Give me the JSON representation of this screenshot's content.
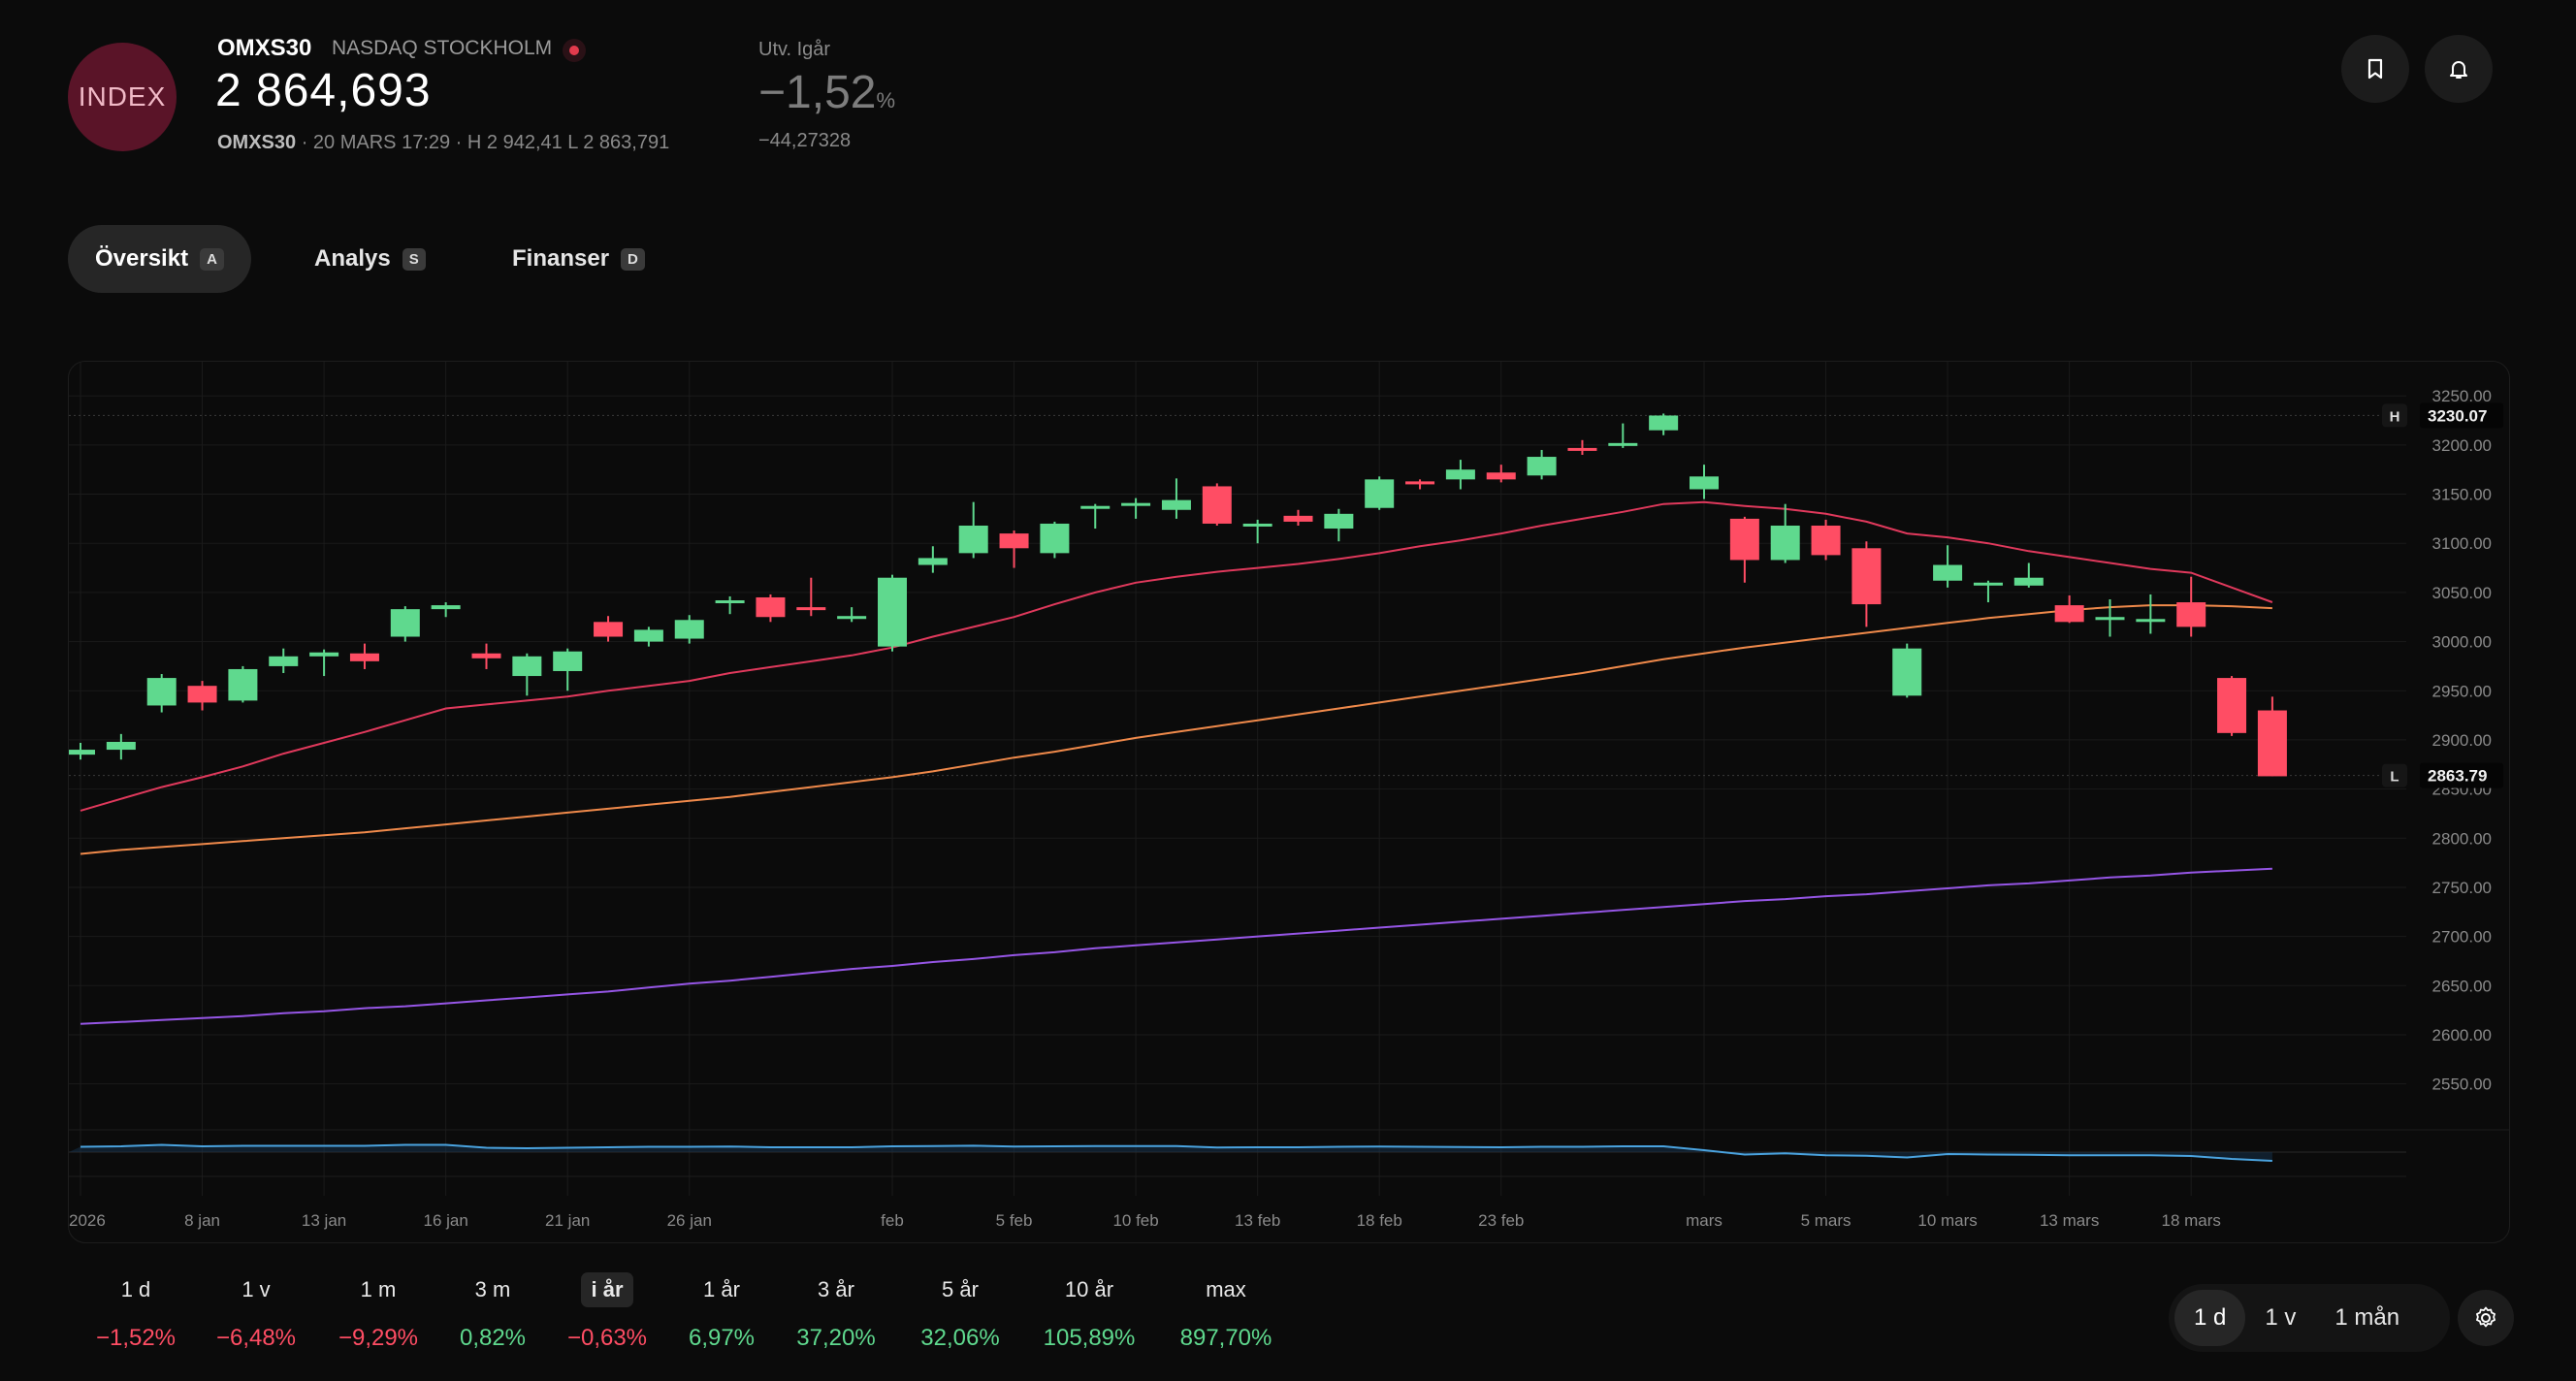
{
  "header": {
    "logo_text": "INDEX",
    "ticker": "OMXS30",
    "exchange": "NASDAQ STOCKHOLM",
    "price": "2 864,693",
    "sub_ticker": "OMXS30",
    "sub_rest": "· 20 MARS 17:29 · H 2 942,41 L 2 863,791",
    "change_label": "Utv. Igår",
    "change_pct": "−1,52",
    "change_pct_unit": "%",
    "change_abs": "−44,27328"
  },
  "icons": {
    "bookmark": "bookmark-icon",
    "bell": "bell-icon",
    "settings": "gear-icon",
    "live": "live-dot-icon"
  },
  "tabs": [
    {
      "label": "Översikt",
      "key": "A",
      "active": true
    },
    {
      "label": "Analys",
      "key": "S",
      "active": false
    },
    {
      "label": "Finanser",
      "key": "D",
      "active": false
    }
  ],
  "chart_data": {
    "type": "candlestick",
    "y_ticks": [
      "3250.00",
      "3200.00",
      "3150.00",
      "3100.00",
      "3050.00",
      "3000.00",
      "2950.00",
      "2900.00",
      "2850.00",
      "2800.00",
      "2750.00",
      "2700.00",
      "2650.00",
      "2600.00",
      "2550.00"
    ],
    "ylim": [
      2525,
      3265
    ],
    "high_marker": {
      "tag": "H",
      "value": "3230.07"
    },
    "low_marker": {
      "tag": "L",
      "value": "2863.79"
    },
    "x_labels": [
      {
        "label": "2026",
        "i": 0
      },
      {
        "label": "8 jan",
        "i": 3
      },
      {
        "label": "13 jan",
        "i": 6
      },
      {
        "label": "16 jan",
        "i": 9
      },
      {
        "label": "21 jan",
        "i": 12
      },
      {
        "label": "26 jan",
        "i": 15
      },
      {
        "label": "feb",
        "i": 20
      },
      {
        "label": "5 feb",
        "i": 23
      },
      {
        "label": "10 feb",
        "i": 26
      },
      {
        "label": "13 feb",
        "i": 29
      },
      {
        "label": "18 feb",
        "i": 32
      },
      {
        "label": "23 feb",
        "i": 35
      },
      {
        "label": "mars",
        "i": 40
      },
      {
        "label": "5 mars",
        "i": 43
      },
      {
        "label": "10 mars",
        "i": 46
      },
      {
        "label": "13 mars",
        "i": 49
      },
      {
        "label": "18 mars",
        "i": 52
      }
    ],
    "candles": [
      [
        2885,
        2890,
        2880,
        2897
      ],
      [
        2890,
        2898,
        2880,
        2906
      ],
      [
        2935,
        2963,
        2928,
        2967
      ],
      [
        2955,
        2938,
        2930,
        2960
      ],
      [
        2940,
        2972,
        2938,
        2975
      ],
      [
        2975,
        2985,
        2968,
        2993
      ],
      [
        2985,
        2989,
        2965,
        2992
      ],
      [
        2988,
        2980,
        2972,
        2998
      ],
      [
        3005,
        3033,
        3000,
        3036
      ],
      [
        3033,
        3037,
        3025,
        3040
      ],
      [
        2988,
        2983,
        2972,
        2998
      ],
      [
        2965,
        2985,
        2945,
        2988
      ],
      [
        2970,
        2990,
        2950,
        2993
      ],
      [
        3020,
        3005,
        3000,
        3026
      ],
      [
        3000,
        3012,
        2995,
        3015
      ],
      [
        3003,
        3022,
        2998,
        3027
      ],
      [
        3040,
        3042,
        3028,
        3046
      ],
      [
        3045,
        3025,
        3020,
        3048
      ],
      [
        3035,
        3032,
        3026,
        3065
      ],
      [
        3025,
        3026,
        3020,
        3035
      ],
      [
        2995,
        3065,
        2990,
        3068
      ],
      [
        3078,
        3085,
        3070,
        3097
      ],
      [
        3090,
        3118,
        3085,
        3142
      ],
      [
        3110,
        3095,
        3075,
        3113
      ],
      [
        3090,
        3120,
        3085,
        3122
      ],
      [
        3136,
        3138,
        3115,
        3140
      ],
      [
        3140,
        3141,
        3125,
        3146
      ],
      [
        3134,
        3144,
        3125,
        3166
      ],
      [
        3158,
        3120,
        3118,
        3161
      ],
      [
        3119,
        3120,
        3100,
        3124
      ],
      [
        3128,
        3122,
        3118,
        3134
      ],
      [
        3115,
        3130,
        3102,
        3135
      ],
      [
        3136,
        3165,
        3134,
        3168
      ],
      [
        3163,
        3160,
        3155,
        3165
      ],
      [
        3165,
        3175,
        3155,
        3185
      ],
      [
        3172,
        3165,
        3162,
        3180
      ],
      [
        3169,
        3188,
        3165,
        3195
      ],
      [
        3197,
        3195,
        3190,
        3205
      ],
      [
        3202,
        3202,
        3197,
        3222
      ],
      [
        3215,
        3230,
        3210,
        3232
      ],
      [
        3155,
        3168,
        3145,
        3180
      ],
      [
        3125,
        3083,
        3060,
        3127
      ],
      [
        3083,
        3118,
        3080,
        3140
      ],
      [
        3118,
        3088,
        3083,
        3124
      ],
      [
        3095,
        3038,
        3015,
        3102
      ],
      [
        2945,
        2993,
        2943,
        2998
      ],
      [
        3062,
        3078,
        3055,
        3098
      ],
      [
        3060,
        3060,
        3040,
        3062
      ],
      [
        3057,
        3065,
        3055,
        3080
      ],
      [
        3037,
        3020,
        3019,
        3047
      ],
      [
        3022,
        3025,
        3005,
        3043
      ],
      [
        3022,
        3023,
        3008,
        3048
      ],
      [
        3040,
        3015,
        3005,
        3066
      ],
      [
        2963,
        2907,
        2904,
        2965
      ],
      [
        2930,
        2863,
        2863,
        2944
      ]
    ],
    "ma_short": [
      2828,
      2840,
      2852,
      2862,
      2873,
      2886,
      2897,
      2908,
      2920,
      2932,
      2936,
      2940,
      2944,
      2950,
      2955,
      2960,
      2968,
      2974,
      2980,
      2986,
      2994,
      3005,
      3015,
      3025,
      3038,
      3050,
      3060,
      3066,
      3071,
      3075,
      3079,
      3084,
      3090,
      3097,
      3103,
      3110,
      3118,
      3125,
      3132,
      3140,
      3142,
      3138,
      3135,
      3130,
      3122,
      3110,
      3106,
      3100,
      3092,
      3086,
      3080,
      3074,
      3070,
      3055,
      3040
    ],
    "ma_medium": [
      2784,
      2788,
      2791,
      2794,
      2797,
      2800,
      2803,
      2806,
      2810,
      2814,
      2818,
      2822,
      2826,
      2830,
      2834,
      2838,
      2842,
      2847,
      2852,
      2857,
      2862,
      2868,
      2875,
      2882,
      2888,
      2895,
      2902,
      2908,
      2914,
      2920,
      2926,
      2932,
      2938,
      2944,
      2950,
      2956,
      2962,
      2968,
      2975,
      2982,
      2988,
      2994,
      2999,
      3004,
      3009,
      3014,
      3019,
      3024,
      3028,
      3032,
      3035,
      3037,
      3037,
      3036,
      3034
    ],
    "ma_long": [
      2611,
      2613,
      2615,
      2617,
      2619,
      2622,
      2624,
      2627,
      2629,
      2632,
      2635,
      2638,
      2641,
      2644,
      2648,
      2652,
      2655,
      2659,
      2663,
      2667,
      2670,
      2674,
      2677,
      2681,
      2684,
      2688,
      2691,
      2694,
      2697,
      2700,
      2703,
      2706,
      2709,
      2712,
      2715,
      2718,
      2721,
      2724,
      2727,
      2730,
      2733,
      2736,
      2738,
      2741,
      2743,
      2746,
      2749,
      2752,
      2754,
      2757,
      2760,
      2762,
      2765,
      2767,
      2769
    ],
    "volume": [
      0.55,
      0.6,
      0.75,
      0.6,
      0.65,
      0.65,
      0.65,
      0.65,
      0.75,
      0.75,
      0.45,
      0.4,
      0.45,
      0.5,
      0.55,
      0.55,
      0.58,
      0.5,
      0.5,
      0.5,
      0.6,
      0.62,
      0.66,
      0.58,
      0.6,
      0.62,
      0.62,
      0.62,
      0.48,
      0.5,
      0.5,
      0.55,
      0.58,
      0.55,
      0.52,
      0.5,
      0.55,
      0.55,
      0.6,
      0.6,
      0.2,
      -0.25,
      -0.12,
      -0.32,
      -0.38,
      -0.55,
      -0.2,
      -0.25,
      -0.27,
      -0.32,
      -0.32,
      -0.32,
      -0.4,
      -0.7,
      -0.9
    ],
    "colors": {
      "up": "#5fd98e",
      "down": "#ff4d64",
      "ma_short": "#e0395c",
      "ma_medium": "#f08a4b",
      "ma_long": "#9656e6",
      "volume": "#4aa3df",
      "grid": "#1b1b1b"
    }
  },
  "periods": [
    {
      "label": "1 d",
      "value": "−1,52%",
      "dir": "neg"
    },
    {
      "label": "1 v",
      "value": "−6,48%",
      "dir": "neg"
    },
    {
      "label": "1 m",
      "value": "−9,29%",
      "dir": "neg"
    },
    {
      "label": "3 m",
      "value": "0,82%",
      "dir": "pos"
    },
    {
      "label": "i år",
      "value": "−0,63%",
      "dir": "neg",
      "active": true
    },
    {
      "label": "1 år",
      "value": "6,97%",
      "dir": "pos"
    },
    {
      "label": "3 år",
      "value": "37,20%",
      "dir": "pos"
    },
    {
      "label": "5 år",
      "value": "32,06%",
      "dir": "pos"
    },
    {
      "label": "10 år",
      "value": "105,89%",
      "dir": "pos"
    },
    {
      "label": "max",
      "value": "897,70%",
      "dir": "pos"
    }
  ],
  "intervals": [
    {
      "label": "1 d",
      "active": true
    },
    {
      "label": "1 v",
      "active": false
    },
    {
      "label": "1 mån",
      "active": false
    }
  ]
}
